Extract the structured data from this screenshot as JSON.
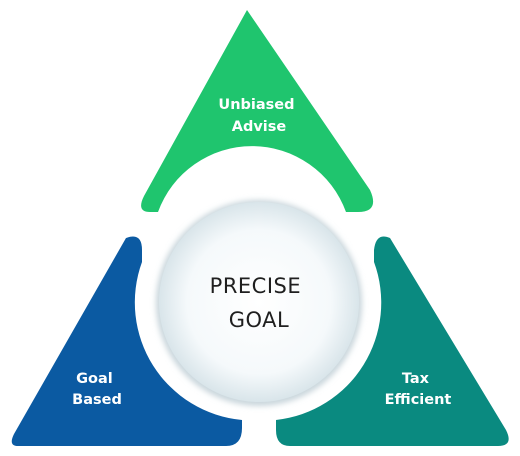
{
  "diagram": {
    "center": {
      "line1": "PRECISE",
      "line2": "GOAL"
    },
    "segments": {
      "top": {
        "line1": "Unbiased",
        "line2": "Advise",
        "color": "#1fc56e"
      },
      "left": {
        "line1": "Goal",
        "line2": "Based",
        "color": "#0b5aa2"
      },
      "right": {
        "line1": "Tax",
        "line2": "Efficient",
        "color": "#0a8a80"
      }
    },
    "colors": {
      "circle_fill": "#edf4f7",
      "circle_shadow": "#c9d6dc"
    }
  }
}
